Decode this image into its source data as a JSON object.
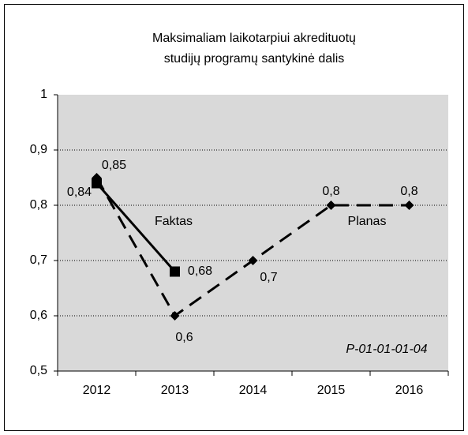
{
  "chart_data": {
    "type": "line",
    "title": [
      "Maksimaliam laikotarpiui akredituotų",
      "studijų programų santykinė dalis"
    ],
    "categories": [
      "2012",
      "2013",
      "2014",
      "2015",
      "2016"
    ],
    "series": [
      {
        "name": "Faktas",
        "color": "#000000",
        "line_style": "solid",
        "marker": "square",
        "values": [
          0.84,
          0.68,
          null,
          null,
          null
        ],
        "value_labels": [
          "0,84",
          "0,68",
          null,
          null,
          null
        ]
      },
      {
        "name": "Planas",
        "color": "#000000",
        "line_style": "dashed",
        "marker": "diamond",
        "values": [
          0.85,
          0.6,
          0.7,
          0.8,
          0.8
        ],
        "value_labels": [
          "0,85",
          "0,6",
          "0,7",
          "0,8",
          "0,8"
        ]
      }
    ],
    "ylim": [
      0.5,
      1
    ],
    "yticks": [
      {
        "value": 0.5,
        "label": "0,5"
      },
      {
        "value": 0.6,
        "label": "0,6"
      },
      {
        "value": 0.7,
        "label": "0,7"
      },
      {
        "value": 0.8,
        "label": "0,8"
      },
      {
        "value": 0.9,
        "label": "0,9"
      },
      1
    ],
    "grid": true,
    "annotation": "P-01-01-01-04"
  }
}
